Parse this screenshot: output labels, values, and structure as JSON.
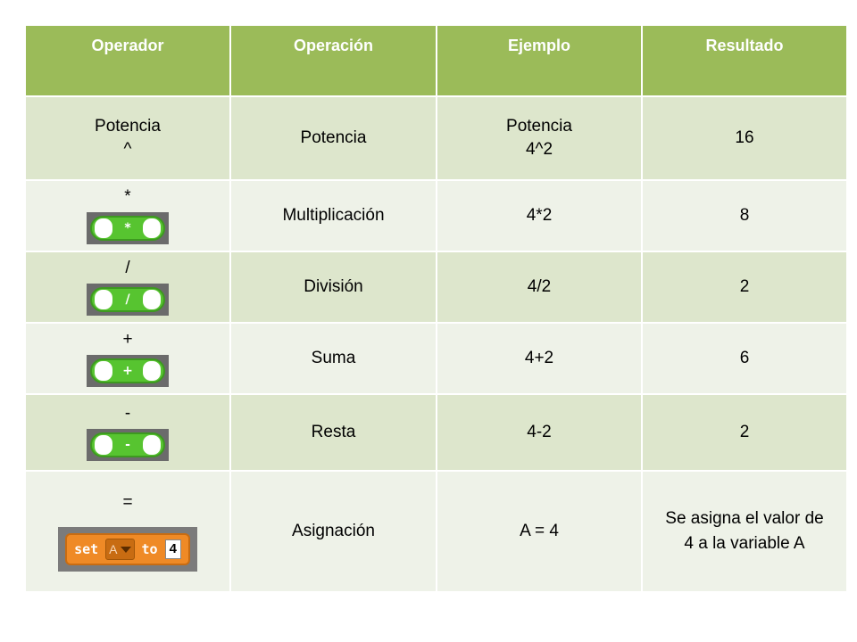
{
  "headers": [
    "Operador",
    "Operación",
    "Ejemplo",
    "Resultado"
  ],
  "rows": [
    {
      "op_line1": "Potencia",
      "op_line2": "^",
      "operacion": "Potencia",
      "ejemplo_line1": "Potencia",
      "ejemplo_line2": "4^2",
      "resultado": "16"
    },
    {
      "op_symbol": "*",
      "block_symbol": "*",
      "operacion": "Multiplicación",
      "ejemplo": "4*2",
      "resultado": "8"
    },
    {
      "op_symbol": "/",
      "block_symbol": "/",
      "operacion": "División",
      "ejemplo": "4/2",
      "resultado": "2"
    },
    {
      "op_symbol": "+",
      "block_symbol": "+",
      "operacion": "Suma",
      "ejemplo": "4+2",
      "resultado": "6"
    },
    {
      "op_symbol": "-",
      "block_symbol": "-",
      "operacion": "Resta",
      "ejemplo": "4-2",
      "resultado": "2"
    },
    {
      "op_symbol": "=",
      "set_block": {
        "keyword_set": "set",
        "variable": "A",
        "keyword_to": "to",
        "value": "4"
      },
      "operacion": "Asignación",
      "ejemplo": "A = 4",
      "resultado_line1": "Se asigna el valor de",
      "resultado_line2": "4 a la variable A"
    }
  ],
  "colors": {
    "header_bg": "#9bbb59",
    "row_dark": "#dde6cc",
    "row_light": "#eef2e8",
    "operator_block_green": "#57c430",
    "set_block_orange": "#ef8a26"
  },
  "icons": [
    "multiply-block-icon",
    "divide-block-icon",
    "add-block-icon",
    "subtract-block-icon",
    "set-variable-block-icon"
  ]
}
